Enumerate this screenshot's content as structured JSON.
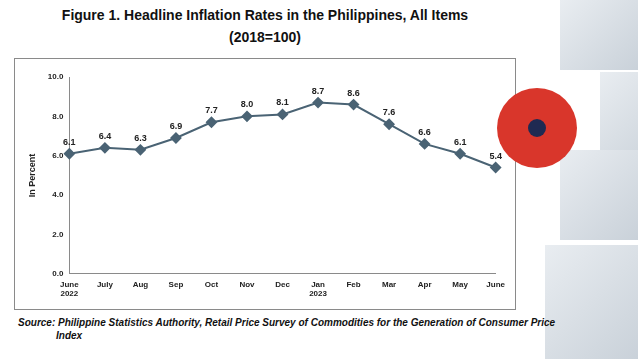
{
  "chart_data": {
    "type": "line",
    "title": "Figure 1. Headline Inflation Rates in the Philippines, All Items",
    "subtitle": "(2018=100)",
    "y_label": "In Percent",
    "source": "Source: Philippine Statistics Authority, Retail Price Survey of Commodities for the Generation of Consumer Price Index",
    "categories": [
      "June 2022",
      "July",
      "Aug",
      "Sep",
      "Oct",
      "Nov",
      "Dec",
      "Jan 2023",
      "Feb",
      "Mar",
      "Apr",
      "May",
      "June"
    ],
    "values": [
      6.1,
      6.4,
      6.3,
      6.9,
      7.7,
      8.0,
      8.1,
      8.7,
      8.6,
      7.6,
      6.6,
      6.1,
      5.4
    ],
    "value_labels": [
      "6.1",
      "6.4",
      "6.3",
      "6.9",
      "7.7",
      "8.0",
      "8.1",
      "8.7",
      "8.6",
      "7.6",
      "6.6",
      "6.1",
      "5.4"
    ],
    "color": "#4a6374",
    "marker": "diamond",
    "line_style": "solid",
    "ylim": [
      0,
      10
    ],
    "yticks": [
      {
        "value": 0,
        "label": "0.0"
      },
      {
        "value": 2,
        "label": "2.0"
      },
      {
        "value": 4,
        "label": "4.0"
      },
      {
        "value": 6,
        "label": "6.0"
      },
      {
        "value": 8,
        "label": "8.0"
      },
      {
        "value": 10,
        "label": "10.0"
      }
    ],
    "grid": false,
    "data_labels": true
  }
}
